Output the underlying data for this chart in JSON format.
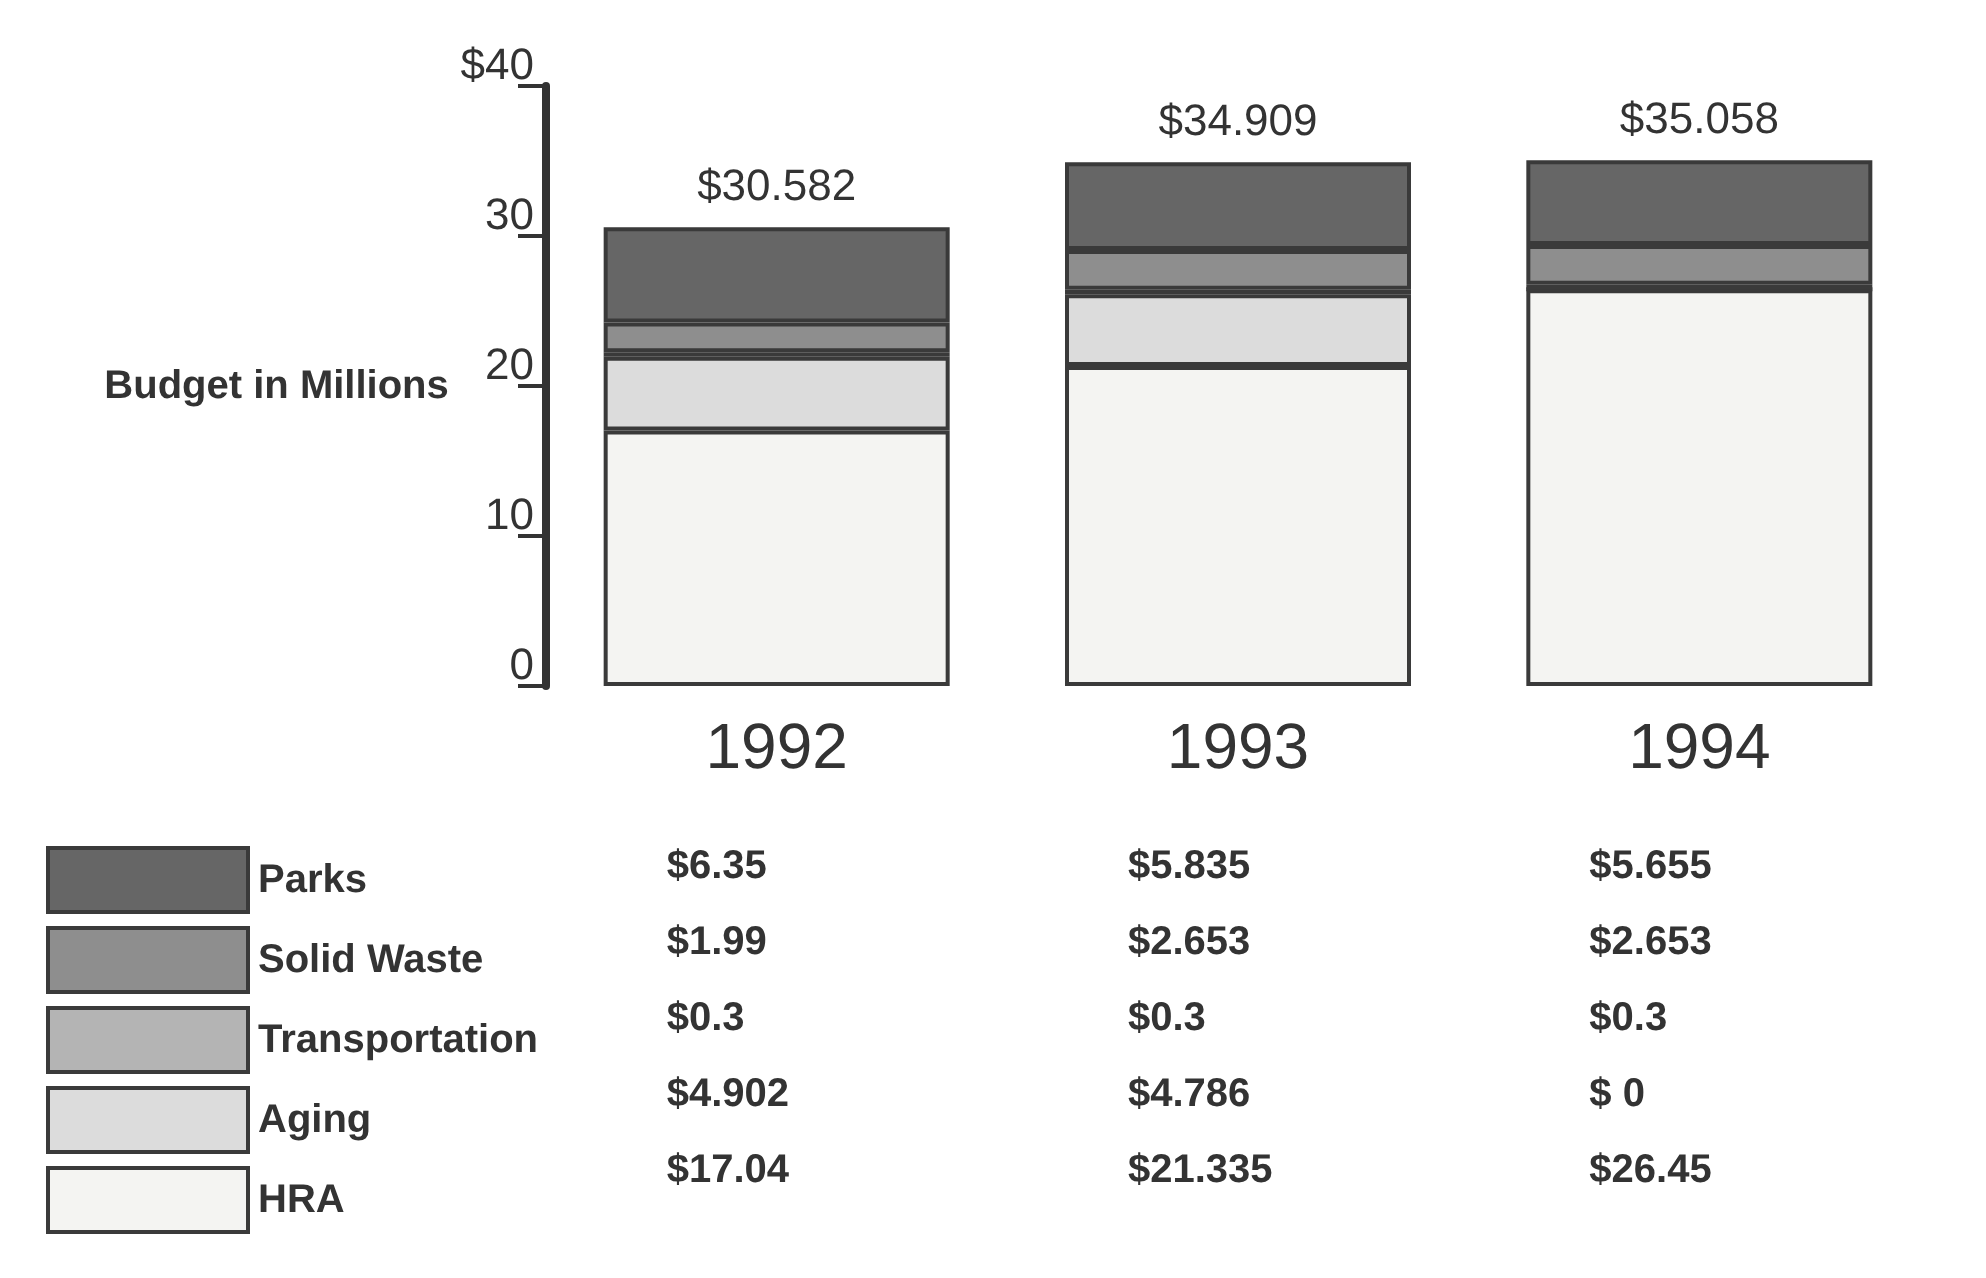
{
  "chart_data": {
    "type": "bar",
    "ylabel": "Budget in Millions",
    "categories": [
      "1992",
      "1993",
      "1994"
    ],
    "stacked": true,
    "series": [
      {
        "name": "HRA",
        "color": "#f4f4f2",
        "values": [
          17.04,
          21.335,
          26.45
        ],
        "value_labels": [
          "$17.04",
          "$21.335",
          "$26.45"
        ]
      },
      {
        "name": "Aging",
        "color": "#dcdcdc",
        "values": [
          4.902,
          4.786,
          0
        ],
        "value_labels": [
          "$4.902",
          "$4.786",
          "$ 0"
        ]
      },
      {
        "name": "Transportation",
        "color": "#b4b4b4",
        "values": [
          0.3,
          0.3,
          0.3
        ],
        "value_labels": [
          "$0.3",
          "$0.3",
          "$0.3"
        ]
      },
      {
        "name": "Solid Waste",
        "color": "#8e8e8e",
        "values": [
          1.99,
          2.653,
          2.653
        ],
        "value_labels": [
          "$1.99",
          "$2.653",
          "$2.653"
        ]
      },
      {
        "name": "Parks",
        "color": "#666666",
        "values": [
          6.35,
          5.835,
          5.655
        ],
        "value_labels": [
          "$6.35",
          "$5.835",
          "$5.655"
        ]
      }
    ],
    "totals": [
      "$30.582",
      "$34.909",
      "$35.058"
    ],
    "ylim": [
      0,
      40
    ],
    "yticks": [
      0,
      10,
      20,
      30,
      {
        "value": 40,
        "label": "$40"
      }
    ],
    "grid": false,
    "legend": "bottom left"
  }
}
